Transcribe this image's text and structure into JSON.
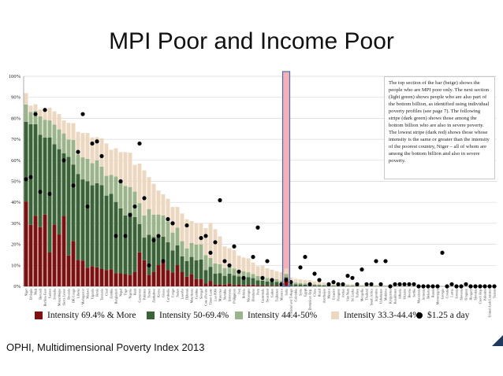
{
  "slide": {
    "title": "MPI Poor and Income Poor",
    "footer": "OPHI, Multidimensional Poverty Index 2013",
    "note": "The top section of the bar (beige) shows the people who are MPI poor only. The next section (light green) shows people who are also part of the bottom billion, as identified using individual poverty profiles (see page 7). The following stripe (dark green) shows those among the bottom billion who are also in severe poverty. The lowest stripe (dark red) shows those whose intensity is the same or greater than the intensity of the poorest country, Niger – all of whom are among the bottom billion and also in severe poverty."
  },
  "colors": {
    "red": "#7b1111",
    "dark_green": "#3a6338",
    "light_green": "#9cb48b",
    "beige": "#ecd7c0",
    "highlight": "#f3b1b7",
    "highlight_border": "#4a6ea8"
  },
  "legend": [
    {
      "label": "Intensity 69.4% & More",
      "swatch": "red"
    },
    {
      "label": "Intensity 50-69.4%",
      "swatch": "dark_green"
    },
    {
      "label": "Intensity 44.4-50%",
      "swatch": "light_green"
    },
    {
      "label": "Intensity 33.3-44.4%",
      "swatch": "beige"
    },
    {
      "label": "$1.25 a day",
      "swatch": "dot"
    }
  ],
  "chart_data": {
    "type": "bar",
    "stacked": true,
    "ylim": [
      0,
      100
    ],
    "yticks": [
      0,
      10,
      20,
      30,
      40,
      50,
      60,
      70,
      80,
      90,
      100
    ],
    "ytick_labels": [
      "0%",
      "10%",
      "20%",
      "30%",
      "40%",
      "50%",
      "60%",
      "70%",
      "80%",
      "90%",
      "100%"
    ],
    "legend_position": "bottom",
    "highlighted_category": "India",
    "categories": [
      "Niger",
      "Ethiopia",
      "Mali",
      "Burundi",
      "Burkina Faso",
      "Guinea",
      "Somalia",
      "Mozambique",
      "Sierra Leone",
      "Rwanda",
      "DR Congo",
      "Liberia",
      "Madagascar",
      "Malawi",
      "Uganda",
      "Benin",
      "Tanzania",
      "Chad",
      "Zambia",
      "Bangladesh",
      "Nepal",
      "Togo",
      "Nigeria",
      "Haiti",
      "Cameroon",
      "Pakistan",
      "Yemen",
      "Zimbabwe",
      "Kenya",
      "Ghana",
      "Cambodia",
      "Congo",
      "Sudan",
      "Lesotho",
      "Djibouti",
      "Mauritania",
      "Gambia",
      "Senegal",
      "Cote d'Ivoire",
      "Timor-Leste",
      "Lao PDR",
      "Myanmar",
      "Namibia",
      "Indonesia",
      "Philippines",
      "Iraq",
      "Bolivia",
      "Nicaragua",
      "Honduras",
      "Peru",
      "Guatemala",
      "Swaziland",
      "Gabon",
      "Tajikistan",
      "Morocco",
      "India",
      "Trinidad and Tobago",
      "Colombia",
      "Syria",
      "Egypt",
      "Dominican Rep.",
      "China",
      "Brazil",
      "Azerbaijan",
      "Mexico",
      "Ecuador",
      "Paraguay",
      "Jordan",
      "Viet Nam",
      "Sri Lanka",
      "Turkey",
      "Mongolia",
      "Thailand",
      "South Africa",
      "Argentina",
      "Uzbekistan",
      "Moldova",
      "Kyrgyzstan",
      "Kazakhstan",
      "Albania",
      "Ukraine",
      "Bosnia",
      "Serbia",
      "Macedonia",
      "Armenia",
      "Belarus",
      "Russia",
      "Montenegro",
      "Georgia",
      "Croatia",
      "Latvia",
      "Estonia",
      "Slovenia",
      "Uruguay",
      "Hungary",
      "Slovakia",
      "Czech Rep.",
      "Palestine",
      "United Arab Emirates",
      "Tunisia"
    ],
    "series": [
      {
        "name": "Intensity 69.4% & More",
        "color": "red",
        "values": [
          40.4,
          29.3,
          33.5,
          28.2,
          34.2,
          16.1,
          29.5,
          24.7,
          33.5,
          14.7,
          21.5,
          12.6,
          12.3,
          8.9,
          9.6,
          9.1,
          8.4,
          7.8,
          8.1,
          6.3,
          6.2,
          5.8,
          5.5,
          6.9,
          16.2,
          12.4,
          5.5,
          7.0,
          10.1,
          12.6,
          7.7,
          6.6,
          10.1,
          6.9,
          4.6,
          5.9,
          3.5,
          3.4,
          1.3,
          2.6,
          0.9,
          1.0,
          0.8,
          1.4,
          0.6,
          0.9,
          0.5,
          0.7,
          0.7,
          0.5,
          0.4,
          0.3,
          0.3,
          0.2,
          0.3,
          2.5,
          0.1,
          0.1,
          0.1,
          0.1,
          0.1,
          0.1,
          0.0,
          0.0,
          0.1,
          0.0,
          0.0,
          0.0,
          0.0,
          0.0,
          0.0,
          0.0,
          0.0,
          0.0,
          0.0,
          0.0,
          0.0,
          0.0,
          0.0,
          0.0,
          0.0,
          0.0,
          0.0,
          0.0,
          0.0,
          0.0,
          0.0,
          0.0,
          0.0,
          0.0,
          0.0,
          0.0,
          0.0,
          0.0,
          0.0,
          0.0,
          0.0,
          0.0,
          0.0,
          0.0
        ]
      },
      {
        "name": "Intensity 50-69.4%",
        "color": "dark_green",
        "values": [
          37.9,
          47.9,
          43.7,
          44.0,
          36.6,
          54.8,
          38.2,
          40.6,
          29.8,
          46.9,
          36.5,
          40.9,
          38.6,
          41.1,
          38.5,
          40.0,
          39.8,
          35.4,
          35.9,
          33.9,
          30.9,
          27.9,
          29.6,
          26.1,
          13.4,
          10.8,
          19.1,
          16.5,
          14.0,
          11.0,
          13.3,
          10.5,
          9.4,
          7.4,
          7.4,
          8.1,
          8.9,
          9.4,
          6.4,
          6.7,
          5.2,
          5.3,
          4.2,
          4.6,
          4.6,
          3.8,
          3.7,
          3.7,
          3.2,
          2.3,
          2.3,
          2.0,
          1.9,
          1.9,
          1.3,
          1.8,
          1.0,
          0.9,
          0.8,
          0.7,
          0.6,
          0.5,
          0.5,
          0.4,
          0.4,
          0.3,
          0.3,
          0.2,
          0.2,
          0.2,
          0.2,
          0.1,
          0.1,
          0.1,
          0.1,
          0.1,
          0.1,
          0.1,
          0.1,
          0.1,
          0.1,
          0.1,
          0.0,
          0.0,
          0.0,
          0.0,
          0.0,
          0.0,
          0.0,
          0.0,
          0.0,
          0.0,
          0.0,
          0.0,
          0.0,
          0.0,
          0.0,
          0.0,
          0.0,
          0.0
        ]
      },
      {
        "name": "Intensity 44.4-50%",
        "color": "light_green",
        "values": [
          8.3,
          5.8,
          6.3,
          8.7,
          8.5,
          8.1,
          9.3,
          9.4,
          9.5,
          8.3,
          11.7,
          9.3,
          10.5,
          10.7,
          10.5,
          10.9,
          8.8,
          9.4,
          9.0,
          12.1,
          13.1,
          14.1,
          12.2,
          12.1,
          10.0,
          10.5,
          12.2,
          10.6,
          10.1,
          10.2,
          9.9,
          8.5,
          8.5,
          7.2,
          6.1,
          6.7,
          7.5,
          7.2,
          7.1,
          4.2,
          4.8,
          4.2,
          3.7,
          3.4,
          3.3,
          3.0,
          2.9,
          2.3,
          2.0,
          2.1,
          2.0,
          1.7,
          1.5,
          1.3,
          1.1,
          1.6,
          1.0,
          0.8,
          0.7,
          0.6,
          0.6,
          0.4,
          0.4,
          0.3,
          0.2,
          0.2,
          0.2,
          0.2,
          0.2,
          0.2,
          0.2,
          0.1,
          0.1,
          0.1,
          0.1,
          0.1,
          0.1,
          0.1,
          0.1,
          0.1,
          0.0,
          0.0,
          0.0,
          0.0,
          0.0,
          0.0,
          0.0,
          0.0,
          0.0,
          0.0,
          0.0,
          0.0,
          0.0,
          0.0,
          0.0,
          0.0,
          0.0,
          0.0,
          0.0,
          0.0
        ]
      },
      {
        "name": "Intensity 33.3-44.4%",
        "color": "beige",
        "values": [
          5.4,
          3.0,
          3.2,
          3.3,
          5.0,
          6.0,
          6.3,
          7.3,
          6.2,
          7.9,
          8.0,
          10.8,
          11.6,
          12.3,
          12.3,
          11.0,
          13.5,
          15.4,
          12.0,
          13.4,
          13.7,
          16.1,
          16.3,
          12.7,
          18.8,
          21.5,
          15.2,
          14.7,
          11.4,
          10.0,
          10.8,
          12.2,
          9.8,
          13.2,
          13.8,
          10.4,
          10.1,
          9.9,
          12.9,
          16.6,
          16.3,
          13.3,
          10.3,
          8.8,
          8.8,
          6.9,
          6.6,
          6.6,
          5.4,
          4.7,
          5.1,
          4.6,
          4.2,
          3.8,
          4.0,
          2.6,
          2.1,
          1.8,
          1.7,
          1.6,
          1.6,
          1.3,
          1.2,
          1.1,
          1.0,
          0.8,
          0.8,
          0.7,
          0.7,
          0.6,
          0.6,
          0.5,
          0.5,
          0.4,
          0.4,
          0.4,
          0.3,
          0.3,
          0.3,
          0.3,
          0.2,
          0.2,
          0.2,
          0.2,
          0.2,
          0.2,
          0.1,
          0.1,
          0.1,
          0.1,
          0.1,
          0.1,
          0.1,
          0.1,
          0.1,
          0.1,
          0.1,
          0.0,
          0.0,
          0.0
        ]
      },
      {
        "name": "$1.25 a day",
        "type": "scatter",
        "values": [
          51,
          52,
          82,
          45,
          84,
          44,
          null,
          null,
          60,
          null,
          48,
          64,
          82,
          38,
          68,
          69,
          62,
          null,
          null,
          24,
          50,
          24,
          34,
          38,
          68,
          42,
          10,
          22,
          24,
          12,
          32,
          30,
          null,
          null,
          29,
          null,
          null,
          23,
          24,
          16,
          21,
          41,
          12,
          10,
          19,
          7,
          4,
          null,
          14,
          28,
          4,
          12,
          3,
          null,
          1,
          3,
          2,
          null,
          9,
          14,
          1,
          6,
          3,
          null,
          1,
          2,
          1,
          1,
          5,
          4,
          1,
          8,
          1,
          1,
          12,
          1,
          12,
          0,
          1,
          1,
          1,
          1,
          1,
          0,
          0,
          0,
          0,
          0,
          16,
          0,
          1,
          0,
          0,
          1,
          0,
          0,
          0,
          0,
          0,
          0
        ]
      }
    ]
  }
}
